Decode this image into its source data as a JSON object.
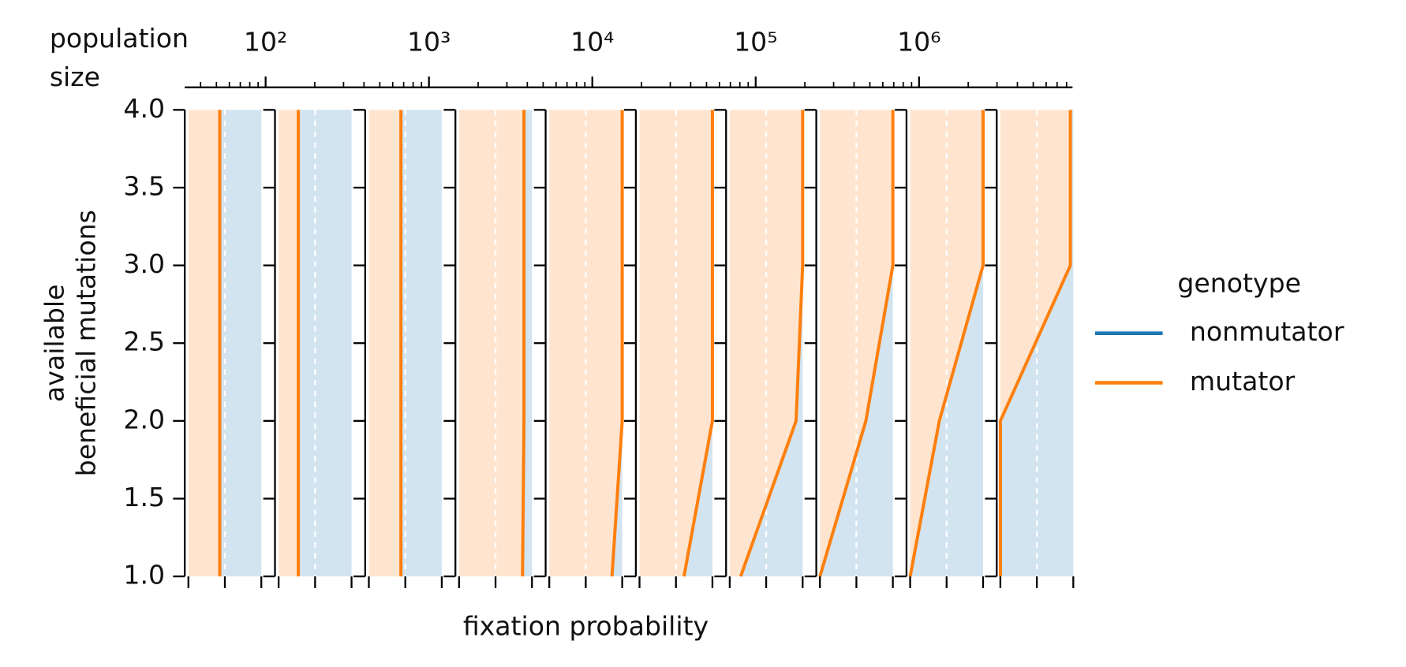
{
  "chart_data": {
    "type": "area",
    "xlabel": "fixation probability",
    "ylabel": [
      "available",
      "beneficial mutations"
    ],
    "top_axis": {
      "label": [
        "population",
        "size"
      ],
      "log": true,
      "xlim": [
        32,
        8700000
      ],
      "xticks": [
        {
          "value": 100,
          "label": "10²"
        },
        {
          "value": 1000,
          "label": "10³"
        },
        {
          "value": 10000,
          "label": "10⁴"
        },
        {
          "value": 100000,
          "label": "10⁵"
        },
        {
          "value": 1000000,
          "label": "10⁶"
        }
      ]
    },
    "xlim": [
      -0.05,
      1.05
    ],
    "xticks": [
      0,
      0.5,
      1
    ],
    "ylim": [
      1,
      4
    ],
    "yticks": [
      {
        "value": 1,
        "label": "1.0"
      },
      {
        "value": 1.5,
        "label": "1.5"
      },
      {
        "value": 2,
        "label": "2.0"
      },
      {
        "value": 2.5,
        "label": "2.5"
      },
      {
        "value": 3,
        "label": "3.0"
      },
      {
        "value": 3.5,
        "label": "3.5"
      },
      {
        "value": 4,
        "label": "4.0"
      }
    ],
    "y": [
      1,
      2,
      3,
      4
    ],
    "series": [
      {
        "name": "nonmutator",
        "color": "#1f77b4"
      },
      {
        "name": "mutator",
        "color": "#ff7f0e",
        "values": [
          [
            0.43,
            0.43,
            0.43,
            0.43
          ],
          [
            0.27,
            0.27,
            0.27,
            0.27
          ],
          [
            0.44,
            0.44,
            0.44,
            0.44
          ],
          [
            0.87,
            0.89,
            0.89,
            0.89
          ],
          [
            0.86,
            1.0,
            1.0,
            1.0
          ],
          [
            0.61,
            1.0,
            1.0,
            1.0
          ],
          [
            0.15,
            0.91,
            1.0,
            1.0
          ],
          [
            0.0,
            0.63,
            1.0,
            1.0
          ],
          [
            0.0,
            0.4,
            1.0,
            1.0
          ],
          [
            0.0,
            0.0,
            0.96,
            0.96
          ]
        ]
      }
    ],
    "grid": true,
    "legend": {
      "title": "genotype",
      "loc": "right"
    }
  }
}
